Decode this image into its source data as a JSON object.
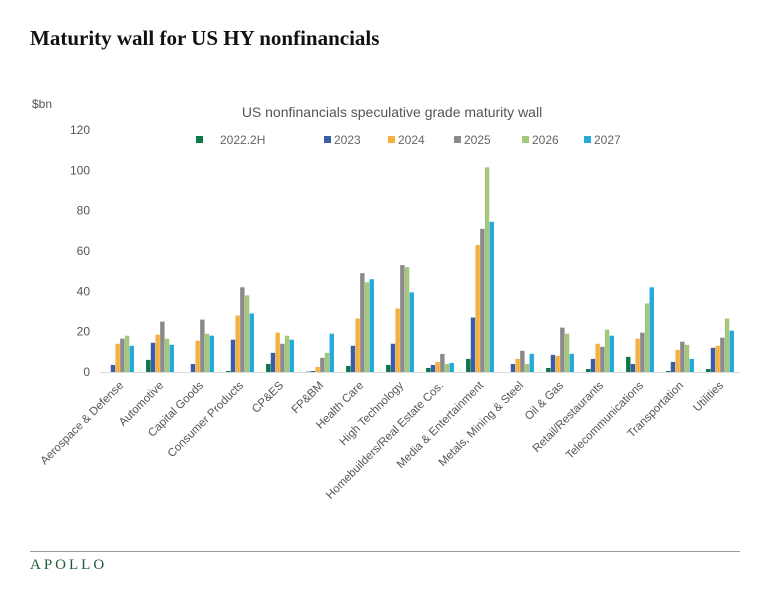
{
  "page": {
    "title": "Maturity wall for US HY nonfinancials",
    "logo": "APOLLO"
  },
  "chart_data": {
    "type": "bar",
    "title": "US nonfinancials speculative grade maturity wall",
    "ylabel": "$bn",
    "xlabel": "",
    "ylim": [
      0,
      120
    ],
    "yticks": [
      0,
      20,
      40,
      60,
      80,
      100,
      120
    ],
    "grid": false,
    "legend_position": "top",
    "categories": [
      "Aerospace & Defense",
      "Automotive",
      "Capital Goods",
      "Consumer Products",
      "CP&ES",
      "FP&BM",
      "Health Care",
      "High Technology",
      "Homebuilders/Real Estate Cos.",
      "Media & Entertainment",
      "Metals, Mining & Steel",
      "Oil & Gas",
      "Retail/Restaurants",
      "Telecommunications",
      "Transportation",
      "Utilities"
    ],
    "series": [
      {
        "name": "2022.2H",
        "color": "#0b7a4b",
        "values": [
          0,
          6,
          0,
          0.5,
          4,
          0.2,
          3,
          3.5,
          2,
          6.5,
          0,
          2,
          1.5,
          7.5,
          0.5,
          1.5
        ]
      },
      {
        "name": "2023",
        "color": "#3a5fa8",
        "values": [
          3.5,
          14.5,
          4,
          16,
          9.5,
          0.5,
          13,
          14,
          3.5,
          27,
          4,
          8.5,
          6.5,
          4,
          5,
          12
        ]
      },
      {
        "name": "2024",
        "color": "#f5b040",
        "values": [
          14,
          18.5,
          15.5,
          28,
          19.5,
          2.5,
          26.5,
          31.5,
          5,
          63,
          6.5,
          8,
          14,
          16.5,
          11,
          13
        ]
      },
      {
        "name": "2025",
        "color": "#8a8a8a",
        "values": [
          16.5,
          25,
          26,
          42,
          14,
          7,
          49,
          53,
          9,
          71,
          10.5,
          22,
          12.5,
          19.5,
          15,
          17
        ]
      },
      {
        "name": "2026",
        "color": "#a5c77c",
        "values": [
          18,
          16.5,
          19,
          38,
          18,
          9.5,
          44.5,
          52,
          4,
          101.5,
          4,
          19,
          21,
          34,
          13.5,
          26.5
        ]
      },
      {
        "name": "2027",
        "color": "#25aad8",
        "values": [
          13,
          13.5,
          18,
          29,
          16,
          19,
          46,
          39.5,
          4.5,
          74.5,
          9,
          9,
          18,
          42,
          6.5,
          20.5
        ]
      }
    ]
  }
}
